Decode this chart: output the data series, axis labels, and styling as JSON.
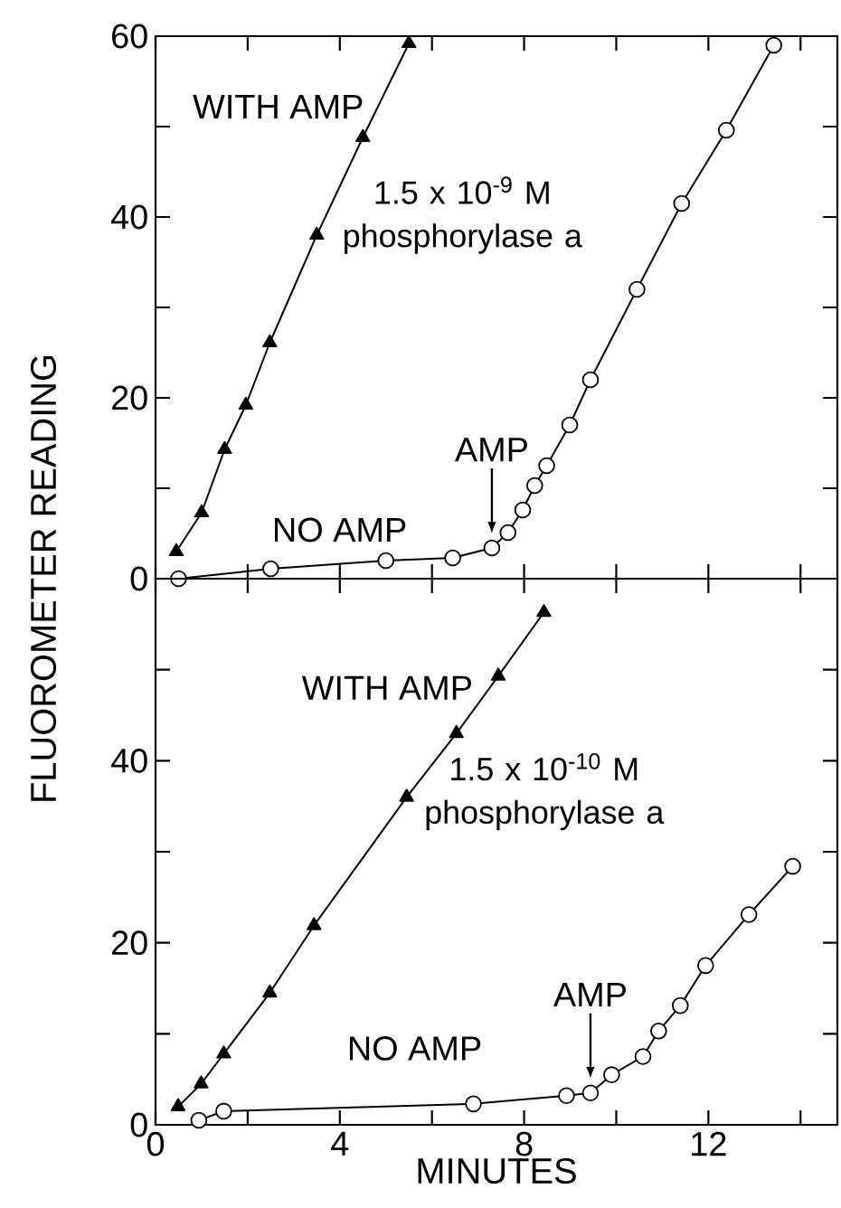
{
  "chart_data": [
    {
      "type": "line",
      "ylabel": "FLUOROMETER READING",
      "xlim": [
        0,
        14.8
      ],
      "ylim": [
        0,
        60
      ],
      "xticks": [
        {
          "value": 0,
          "label": null
        },
        {
          "value": 2,
          "label": null
        },
        {
          "value": 4,
          "label": null
        },
        {
          "value": 6,
          "label": null
        },
        {
          "value": 8,
          "label": null
        },
        {
          "value": 10,
          "label": null
        },
        {
          "value": 12,
          "label": null
        },
        {
          "value": 14,
          "label": null
        }
      ],
      "yticks": [
        0,
        {
          "value": 10,
          "label": null
        },
        20,
        {
          "value": 30,
          "label": null
        },
        40,
        {
          "value": 50,
          "label": null
        },
        60
      ],
      "tick_labels": "y",
      "series": [
        {
          "name": "WITH AMP",
          "color": "#000000",
          "marker": "triangle",
          "x": [
            0.45,
            1.0,
            1.5,
            1.96,
            2.48,
            3.5,
            4.5,
            5.5
          ],
          "values": [
            3.0,
            7.3,
            14.3,
            19.2,
            26.1,
            38,
            48.8,
            59.2
          ]
        },
        {
          "name": "NO AMP",
          "color": "#000000",
          "marker": "circle",
          "x": [
            0.5,
            2.5,
            5.0,
            6.45,
            7.3,
            7.65,
            7.97,
            8.23,
            8.49,
            8.99,
            9.44,
            10.45,
            11.42,
            12.39,
            13.42
          ],
          "values": [
            0,
            1.1,
            2.0,
            2.3,
            3.4,
            5.1,
            7.6,
            10.3,
            12.5,
            17,
            22,
            32,
            41.5,
            49.6,
            59
          ]
        }
      ],
      "annotations": [
        "1.5 x 10$^{-9}$ M phosphorylase a",
        {
          "text": "AMP",
          "x": 7.3,
          "y": 3.4
        }
      ]
    },
    {
      "type": "line",
      "xlabel": "MINUTES",
      "xlim": [
        0,
        14.8
      ],
      "ylim": [
        0,
        60
      ],
      "xticks": [
        0,
        {
          "value": 2,
          "label": null
        },
        4,
        {
          "value": 6,
          "label": null
        },
        8,
        {
          "value": 10,
          "label": null
        },
        12,
        {
          "value": 14,
          "label": null
        }
      ],
      "yticks": [
        0,
        {
          "value": 10,
          "label": null
        },
        20,
        {
          "value": 30,
          "label": null
        },
        40,
        {
          "value": 50,
          "label": null
        }
      ],
      "series": [
        {
          "name": "WITH AMP",
          "color": "#000000",
          "marker": "triangle",
          "x": [
            0.49,
            0.99,
            1.48,
            2.48,
            3.44,
            5.45,
            6.53,
            7.44,
            8.43
          ],
          "values": [
            2.0,
            4.5,
            7.8,
            14.5,
            21.9,
            36,
            43,
            49.3,
            56.3
          ]
        },
        {
          "name": "NO AMP",
          "color": "#000000",
          "marker": "circle",
          "x": [
            0.94,
            1.48,
            6.9,
            8.92,
            9.44,
            9.9,
            10.58,
            10.92,
            11.39,
            11.94,
            12.88,
            13.83
          ],
          "values": [
            0.5,
            1.5,
            2.3,
            3.2,
            3.5,
            5.5,
            7.5,
            10.3,
            13.1,
            17.5,
            23.1,
            28.4
          ]
        }
      ],
      "annotations": [
        "1.5 x 10$^{-10}$ M phosphorylase a",
        {
          "text": "AMP",
          "x": 9.44,
          "y": 3.5
        }
      ]
    }
  ]
}
